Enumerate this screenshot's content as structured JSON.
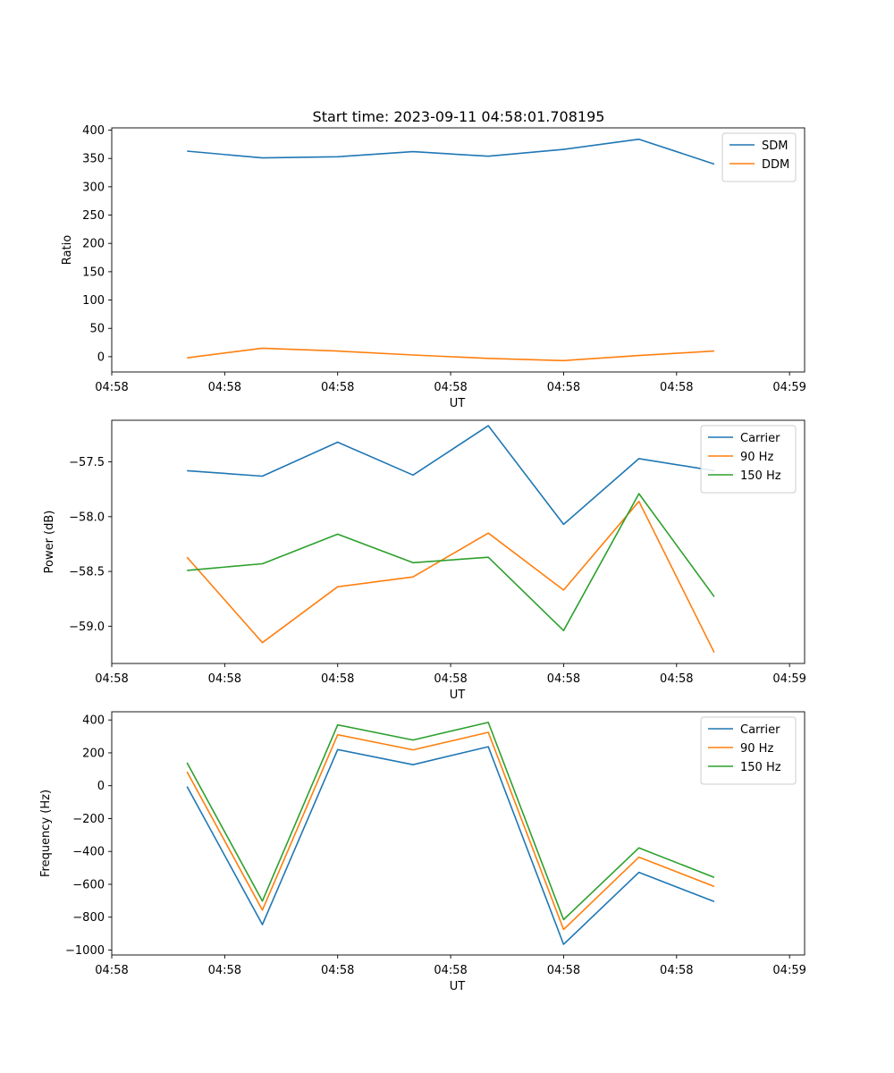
{
  "figure": {
    "title": "Start time: 2023-09-11 04:58:01.708195"
  },
  "colors": {
    "c0": "#1f77b4",
    "c1": "#ff7f0e",
    "c2": "#2ca02c"
  },
  "chart_data": [
    {
      "type": "line",
      "title": "Start time: 2023-09-11 04:58:01.708195",
      "xlabel": "UT",
      "ylabel": "Ratio",
      "x": [
        1,
        2,
        3,
        4,
        5,
        6,
        7,
        8
      ],
      "xlim": [
        0,
        9.2
      ],
      "xticks": [
        0,
        1.5,
        3,
        4.5,
        6,
        7.5,
        9
      ],
      "xtick_labels": [
        "04:58",
        "04:58",
        "04:58",
        "04:58",
        "04:58",
        "04:58",
        "04:59"
      ],
      "ylim": [
        -27,
        404
      ],
      "yticks": [
        0,
        50,
        100,
        150,
        200,
        250,
        300,
        350,
        400
      ],
      "ytick_labels": [
        "0",
        "50",
        "100",
        "150",
        "200",
        "250",
        "300",
        "350",
        "400"
      ],
      "legend": "top-right",
      "series": [
        {
          "name": "SDM",
          "color": "c0",
          "values": [
            363,
            351,
            353,
            362,
            354,
            366,
            384,
            340
          ]
        },
        {
          "name": "DDM",
          "color": "c1",
          "values": [
            -2,
            15,
            10,
            3,
            -3,
            -7,
            2,
            10
          ]
        }
      ]
    },
    {
      "type": "line",
      "xlabel": "UT",
      "ylabel": "Power (dB)",
      "x": [
        1,
        2,
        3,
        4,
        5,
        6,
        7,
        8
      ],
      "xlim": [
        0,
        9.2
      ],
      "xticks": [
        0,
        1.5,
        3,
        4.5,
        6,
        7.5,
        9
      ],
      "xtick_labels": [
        "04:58",
        "04:58",
        "04:58",
        "04:58",
        "04:58",
        "04:58",
        "04:59"
      ],
      "ylim": [
        -59.34,
        -57.12
      ],
      "yticks": [
        -57.5,
        -58.0,
        -58.5,
        -59.0
      ],
      "ytick_labels": [
        "−57.5",
        "−58.0",
        "−58.5",
        "−59.0"
      ],
      "legend": "top-right",
      "series": [
        {
          "name": "Carrier",
          "color": "c0",
          "values": [
            -57.58,
            -57.63,
            -57.32,
            -57.62,
            -57.17,
            -58.07,
            -57.47,
            -57.58
          ]
        },
        {
          "name": "90 Hz",
          "color": "c1",
          "values": [
            -58.37,
            -59.15,
            -58.64,
            -58.55,
            -58.15,
            -58.67,
            -57.86,
            -59.24
          ]
        },
        {
          "name": "150 Hz",
          "color": "c2",
          "values": [
            -58.49,
            -58.43,
            -58.16,
            -58.42,
            -58.37,
            -59.04,
            -57.79,
            -58.73
          ]
        }
      ]
    },
    {
      "type": "line",
      "xlabel": "UT",
      "ylabel": "Frequency (Hz)",
      "x": [
        1,
        2,
        3,
        4,
        5,
        6,
        7,
        8
      ],
      "xlim": [
        0,
        9.2
      ],
      "xticks": [
        0,
        1.5,
        3,
        4.5,
        6,
        7.5,
        9
      ],
      "xtick_labels": [
        "04:58",
        "04:58",
        "04:58",
        "04:58",
        "04:58",
        "04:58",
        "04:59"
      ],
      "ylim": [
        -1030,
        450
      ],
      "yticks": [
        400,
        200,
        0,
        -200,
        -400,
        -600,
        -800,
        -1000
      ],
      "ytick_labels": [
        "400",
        "200",
        "0",
        "−200",
        "−400",
        "−600",
        "−800",
        "−1000"
      ],
      "legend": "top-right",
      "series": [
        {
          "name": "Carrier",
          "color": "c0",
          "values": [
            -5,
            -845,
            220,
            128,
            237,
            -965,
            -527,
            -705
          ]
        },
        {
          "name": "90 Hz",
          "color": "c1",
          "values": [
            85,
            -757,
            310,
            218,
            325,
            -875,
            -435,
            -613
          ]
        },
        {
          "name": "150 Hz",
          "color": "c2",
          "values": [
            140,
            -702,
            370,
            278,
            385,
            -815,
            -378,
            -558
          ]
        }
      ]
    }
  ]
}
